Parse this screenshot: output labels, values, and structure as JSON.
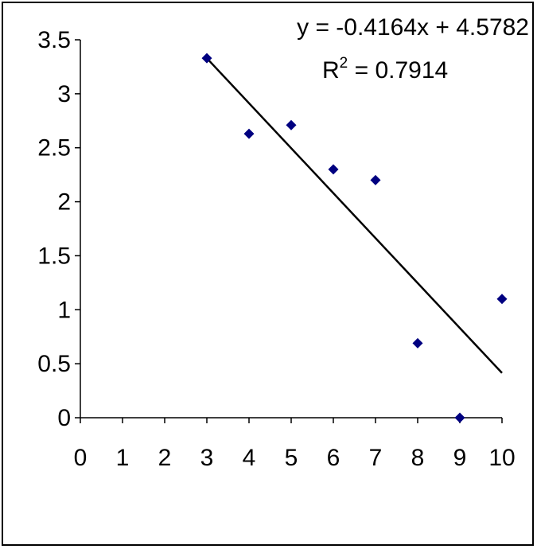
{
  "chart_data": {
    "type": "scatter",
    "xlim": [
      0,
      10
    ],
    "ylim": [
      0,
      3.5
    ],
    "x_ticks": [
      0,
      1,
      2,
      3,
      4,
      5,
      6,
      7,
      8,
      9,
      10
    ],
    "y_ticks": [
      0,
      0.5,
      1,
      1.5,
      2,
      2.5,
      3,
      3.5
    ],
    "x_tick_labels": [
      "0",
      "1",
      "2",
      "3",
      "4",
      "5",
      "6",
      "7",
      "8",
      "9",
      "10"
    ],
    "y_tick_labels": [
      "0",
      "0.5",
      "1",
      "1.5",
      "2",
      "2.5",
      "3",
      "3.5"
    ],
    "grid": false,
    "series": [
      {
        "marker": "diamond",
        "color": "#000080",
        "points": [
          {
            "x": 3,
            "y": 3.33
          },
          {
            "x": 4,
            "y": 2.63
          },
          {
            "x": 5,
            "y": 2.71
          },
          {
            "x": 6,
            "y": 2.3
          },
          {
            "x": 7,
            "y": 2.2
          },
          {
            "x": 8,
            "y": 0.69
          },
          {
            "x": 9,
            "y": 0.0
          },
          {
            "x": 10,
            "y": 1.1
          }
        ]
      }
    ],
    "trendline": {
      "type": "linear",
      "slope": -0.4164,
      "intercept": 4.5782,
      "x_range": [
        3,
        10
      ],
      "color": "#000000",
      "equation_label": "y = -0.4164x + 4.5782",
      "r2_prefix": "R",
      "r2_exponent": "2",
      "r2_suffix": " = 0.7914"
    }
  }
}
